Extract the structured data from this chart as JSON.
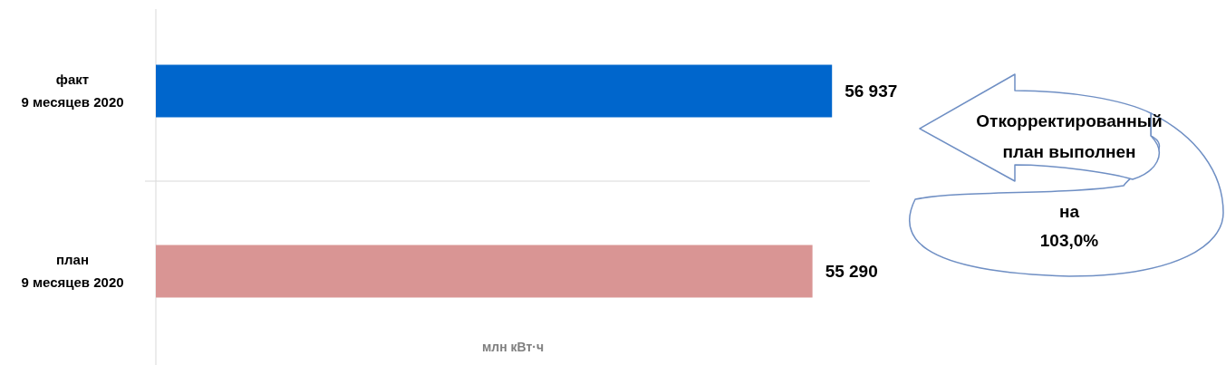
{
  "chart_data": {
    "type": "bar",
    "orientation": "horizontal",
    "categories": [
      "факт\n9 месяцев 2020",
      "план\n9 месяцев 2020"
    ],
    "values": [
      56937,
      55290
    ],
    "colors": [
      "#0066cc",
      "#d99594"
    ],
    "value_labels": [
      "56 937",
      "55 290"
    ],
    "xlabel": "млн кВт·ч",
    "annotations": [
      "Откорректированный\nплан выполнен\nна\n103,0%"
    ]
  }
}
